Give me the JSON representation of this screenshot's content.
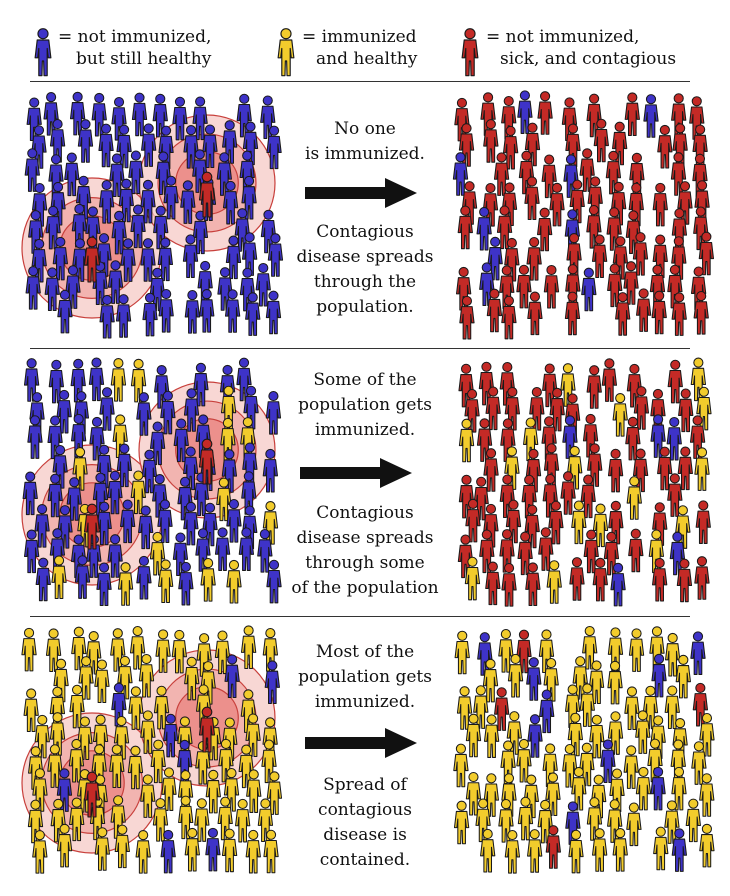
{
  "colors": {
    "not_immunized": "#3e33c8",
    "immunized": "#f2cc2c",
    "sick": "#c42a26",
    "outline": "#1a1a1a",
    "ring": "#e04040"
  },
  "legend": [
    {
      "lines": [
        "= not immunized,",
        "but still healthy"
      ],
      "status": "not_immunized"
    },
    {
      "lines": [
        "= immunized",
        "and healthy"
      ],
      "status": "immunized"
    },
    {
      "lines": [
        "= not immunized,",
        "sick, and contagious"
      ],
      "status": "sick"
    }
  ],
  "scenarios": [
    {
      "caption_top": [
        "No one",
        "is immunized."
      ],
      "caption_bottom": [
        "Contagious",
        "disease spreads",
        "through the",
        "population."
      ],
      "mix_before": "none",
      "mix_after": "none"
    },
    {
      "caption_top": [
        "Some of the",
        "population gets",
        "immunized."
      ],
      "caption_bottom": [
        "Contagious",
        "disease spreads",
        "through some",
        "of the population"
      ],
      "mix_before": "some",
      "mix_after": "some"
    },
    {
      "caption_top": [
        "Most of the",
        "population gets",
        "immunized."
      ],
      "caption_bottom": [
        "Spread of",
        "contagious",
        "disease is",
        "contained."
      ],
      "mix_before": "most",
      "mix_after": "most"
    }
  ]
}
